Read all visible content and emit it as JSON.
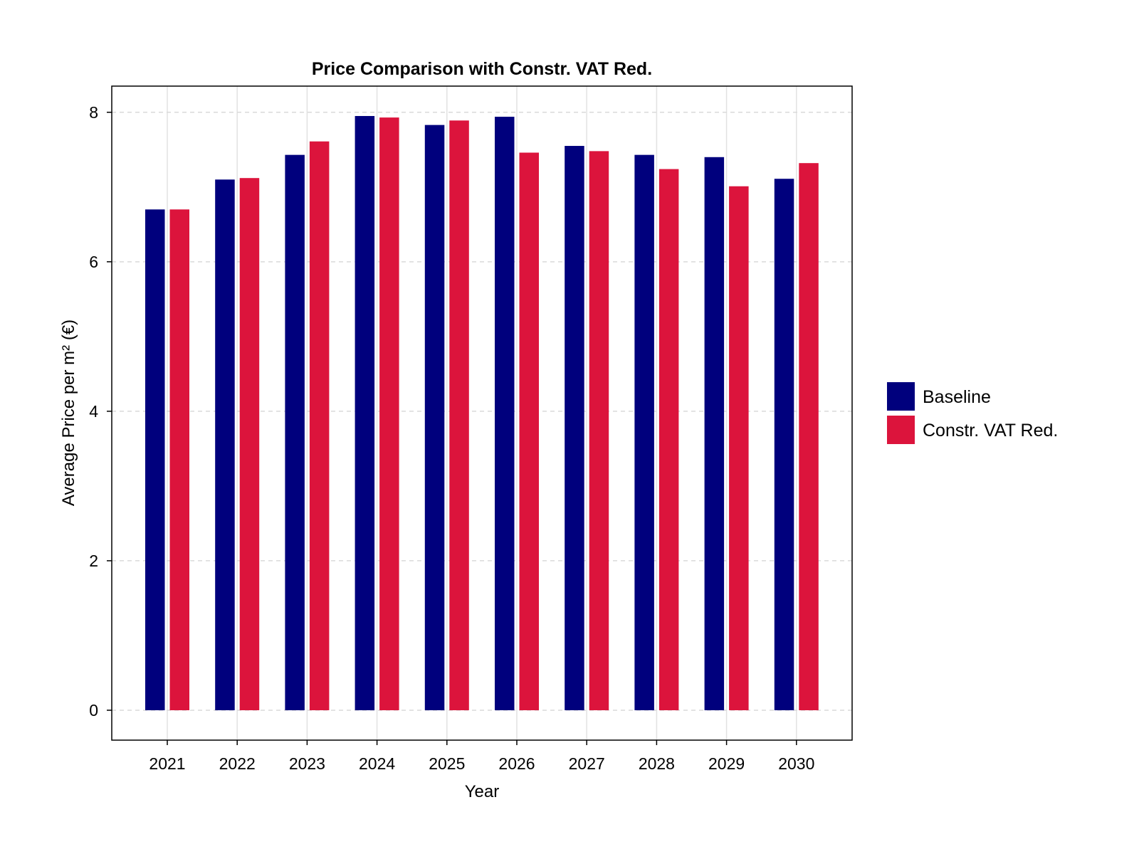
{
  "chart_data": {
    "type": "bar",
    "title": "Price Comparison with Constr. VAT Red.",
    "xlabel": "Year",
    "ylabel": "Average Price per m² (€)",
    "categories": [
      "2021",
      "2022",
      "2023",
      "2024",
      "2025",
      "2026",
      "2027",
      "2028",
      "2029",
      "2030"
    ],
    "series": [
      {
        "name": "Baseline",
        "color": "#00007d",
        "values": [
          6.7,
          7.1,
          7.43,
          7.95,
          7.83,
          7.94,
          7.55,
          7.43,
          7.4,
          7.11
        ]
      },
      {
        "name": "Constr. VAT Red.",
        "color": "#dc143c",
        "values": [
          6.7,
          7.12,
          7.61,
          7.93,
          7.89,
          7.46,
          7.48,
          7.24,
          7.01,
          7.32
        ]
      }
    ],
    "ylim": [
      -0.4,
      8.35
    ],
    "yticks": [
      "0",
      "2",
      "4",
      "6",
      "8"
    ],
    "grid": true,
    "legend": "right"
  }
}
